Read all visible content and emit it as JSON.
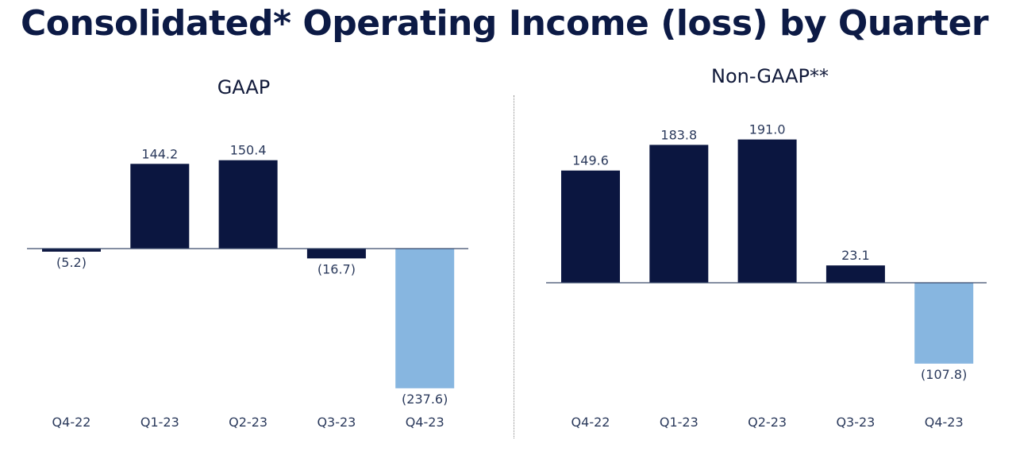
{
  "title": "Consolidated* Operating Income (loss) by Quarter",
  "colors": {
    "title": "#0c1a45",
    "bar_dark": "#0b1640",
    "bar_light": "#87b6e0",
    "axis": "#3b4a6b",
    "text": "#2b3a5c"
  },
  "chart_data": [
    {
      "type": "bar",
      "title": "GAAP",
      "categories": [
        "Q4-22",
        "Q1-23",
        "Q2-23",
        "Q3-23",
        "Q4-23"
      ],
      "values": [
        -5.2,
        144.2,
        150.4,
        -16.7,
        -237.6
      ],
      "value_labels": [
        "(5.2)",
        "144.2",
        "150.4",
        "(16.7)",
        "(237.6)"
      ],
      "highlight_index": 4,
      "xlabel": "",
      "ylabel": "",
      "grid": false
    },
    {
      "type": "bar",
      "title": "Non-GAAP**",
      "categories": [
        "Q4-22",
        "Q1-23",
        "Q2-23",
        "Q3-23",
        "Q4-23"
      ],
      "values": [
        149.6,
        183.8,
        191.0,
        23.1,
        -107.8
      ],
      "value_labels": [
        "149.6",
        "183.8",
        "191.0",
        "23.1",
        "(107.8)"
      ],
      "highlight_index": 4,
      "xlabel": "",
      "ylabel": "",
      "grid": false
    }
  ]
}
